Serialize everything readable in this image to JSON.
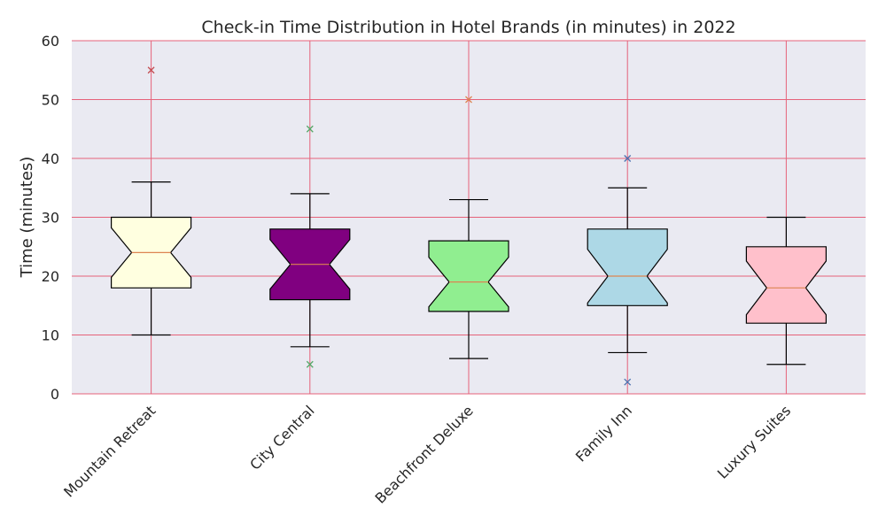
{
  "chart_data": {
    "type": "box",
    "title": "Check-in Time Distribution in Hotel Brands (in minutes) in 2022",
    "xlabel": "",
    "ylabel": "Time (minutes)",
    "ylim": [
      0,
      60
    ],
    "yticks": [
      0,
      10,
      20,
      30,
      40,
      50,
      60
    ],
    "grid": true,
    "notched": true,
    "categories": [
      "Mountain Retreat",
      "City Central",
      "Beachfront Deluxe",
      "Family Inn",
      "Luxury Suites"
    ],
    "boxes": [
      {
        "name": "Mountain Retreat",
        "whisker_low": 10,
        "q1": 18,
        "median": 24,
        "q3": 30,
        "whisker_high": 36,
        "outliers": [
          55
        ],
        "fill": "#ffffe0",
        "outlier_color": "#c44e52"
      },
      {
        "name": "City Central",
        "whisker_low": 8,
        "q1": 16,
        "median": 22,
        "q3": 28,
        "whisker_high": 34,
        "outliers": [
          5,
          45
        ],
        "fill": "#800080",
        "outlier_color": "#55a868"
      },
      {
        "name": "Beachfront Deluxe",
        "whisker_low": 6,
        "q1": 14,
        "median": 19,
        "q3": 26,
        "whisker_high": 33,
        "outliers": [
          50
        ],
        "fill": "#90ee90",
        "outlier_color": "#dd8452"
      },
      {
        "name": "Family Inn",
        "whisker_low": 7,
        "q1": 15,
        "median": 20,
        "q3": 28,
        "whisker_high": 35,
        "outliers": [
          2,
          40
        ],
        "fill": "#add8e6",
        "outlier_color": "#4c72b0"
      },
      {
        "name": "Luxury Suites",
        "whisker_low": 5,
        "q1": 12,
        "median": 18,
        "q3": 25,
        "whisker_high": 30,
        "outliers": [],
        "fill": "#ffc0cb",
        "outlier_color": "#4c72b0"
      }
    ],
    "colors": {
      "plot_background": "#eaeaf2",
      "grid": "#e5627a",
      "median": "#dd8452",
      "box_edge": "#000000"
    }
  }
}
